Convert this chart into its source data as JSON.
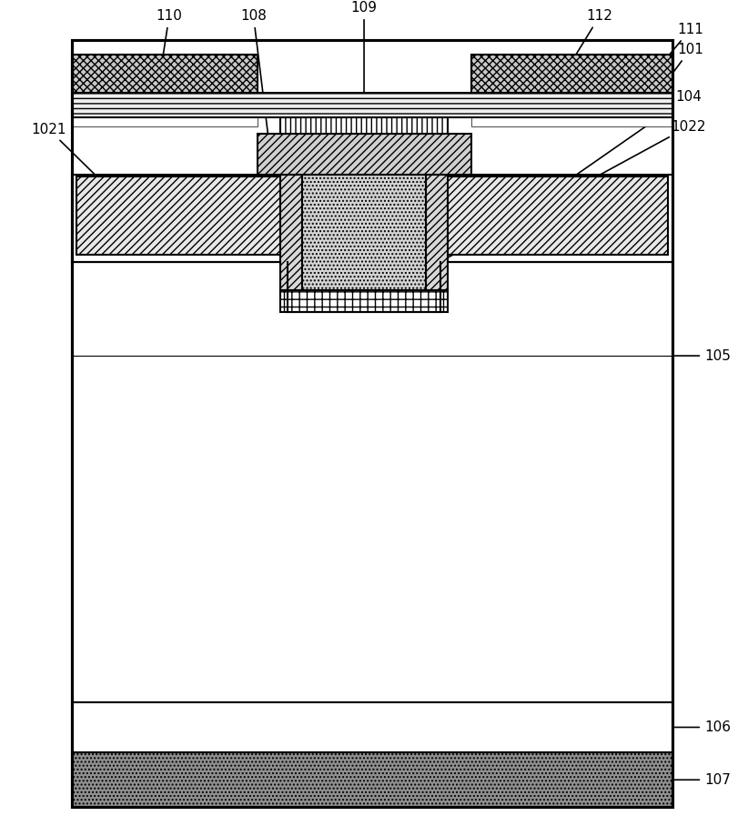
{
  "bg_color": "#ffffff",
  "line_color": "#000000",
  "lw": 1.5,
  "fig_w": 8.22,
  "fig_h": 9.19,
  "dpi": 100
}
